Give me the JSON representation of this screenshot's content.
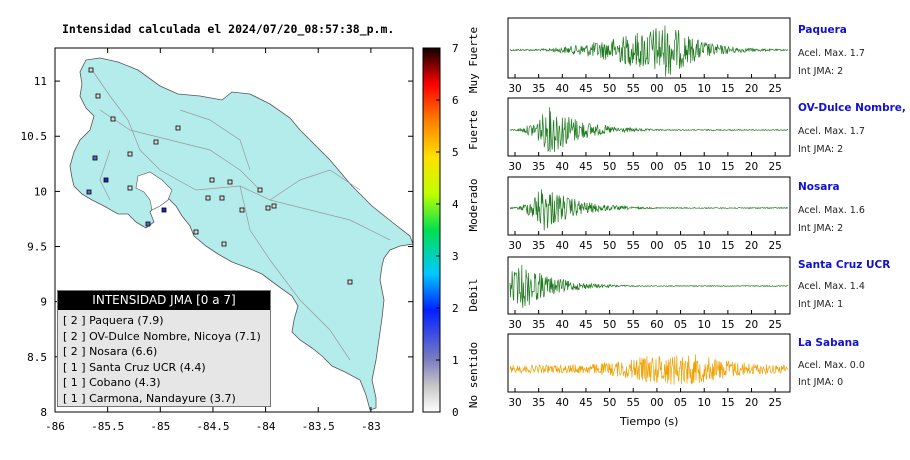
{
  "map": {
    "title": "Intensidad calculada el 2024/07/20_08:57:38_p.m.",
    "x_ticks": [
      "-86",
      "-85.5",
      "-85",
      "-84.5",
      "-84",
      "-83.5",
      "-83"
    ],
    "y_ticks": [
      "11",
      "10.5",
      "10",
      "9.5",
      "9",
      "8.5",
      "8"
    ],
    "colorbar": {
      "ticks": [
        "0",
        "1",
        "2",
        "3",
        "4",
        "5",
        "6",
        "7"
      ],
      "labels": [
        "No sentido",
        "Debil",
        "Moderado",
        "Fuerte",
        "Muy Fuerte"
      ]
    },
    "legend": {
      "title": "INTENSIDAD JMA [0 a 7]",
      "items": [
        "[ 2 ]  Paquera (7.9)",
        "[ 2 ]  OV-Dulce Nombre, Nicoya (7.1)",
        "[ 2 ]  Nosara (6.6)",
        "[ 1 ]  Santa Cruz UCR (4.4)",
        "[ 1 ]  Cobano (4.3)",
        "[ 1 ]  Carmona, Nandayure (3.7)"
      ]
    }
  },
  "traces": {
    "x_axis_label": "Tiempo (s)",
    "stations": [
      {
        "name": "Paquera",
        "acel": "Acel. Max. 1.7",
        "int": "Int JMA: 2",
        "color": "#1e7a1e",
        "ticks": [
          "30",
          "35",
          "40",
          "45",
          "50",
          "55",
          "00",
          "05",
          "10",
          "15",
          "20",
          "25"
        ]
      },
      {
        "name": "OV-Dulce Nombre, Nicoya",
        "acel": "Acel. Max. 1.7",
        "int": "Int JMA: 2",
        "color": "#1e7a1e",
        "ticks": [
          "30",
          "35",
          "40",
          "45",
          "50",
          "55",
          "00",
          "05",
          "10",
          "15",
          "20",
          "25"
        ]
      },
      {
        "name": "Nosara",
        "acel": "Acel. Max. 1.6",
        "int": "Int JMA: 2",
        "color": "#1e7a1e",
        "ticks": [
          "30",
          "35",
          "40",
          "45",
          "50",
          "55",
          "00",
          "05",
          "10",
          "15",
          "20",
          "25"
        ]
      },
      {
        "name": "Santa Cruz UCR",
        "acel": "Acel. Max. 1.4",
        "int": "Int JMA: 1",
        "color": "#1e7a1e",
        "ticks": [
          "30",
          "35",
          "40",
          "45",
          "50",
          "55",
          "60",
          "05",
          "10",
          "15",
          "20",
          "25"
        ]
      },
      {
        "name": "La Sabana",
        "acel": "Acel. Max. 0.0",
        "int": "Int JMA: 0",
        "color": "#f0a000",
        "ticks": [
          "30",
          "35",
          "40",
          "45",
          "50",
          "55",
          "00",
          "05",
          "10",
          "15",
          "20",
          "25"
        ]
      }
    ]
  },
  "chart_data": {
    "type": "scatter",
    "title": "Intensidad calculada el 2024/07/20_08:57:38_p.m.",
    "xlim": [
      -86,
      -82.6
    ],
    "ylim": [
      8,
      11.3
    ],
    "legend_placement": "bottom-left",
    "stations": [
      {
        "name": "Paquera",
        "jma": 2,
        "acel": 7.9
      },
      {
        "name": "OV-Dulce Nombre, Nicoya",
        "jma": 2,
        "acel": 7.1
      },
      {
        "name": "Nosara",
        "jma": 2,
        "acel": 6.6
      },
      {
        "name": "Santa Cruz UCR",
        "jma": 1,
        "acel": 4.4
      },
      {
        "name": "Cobano",
        "jma": 1,
        "acel": 4.3
      },
      {
        "name": "Carmona, Nandayure",
        "jma": 1,
        "acel": 3.7
      }
    ],
    "colorbar_range": [
      0,
      7
    ]
  }
}
